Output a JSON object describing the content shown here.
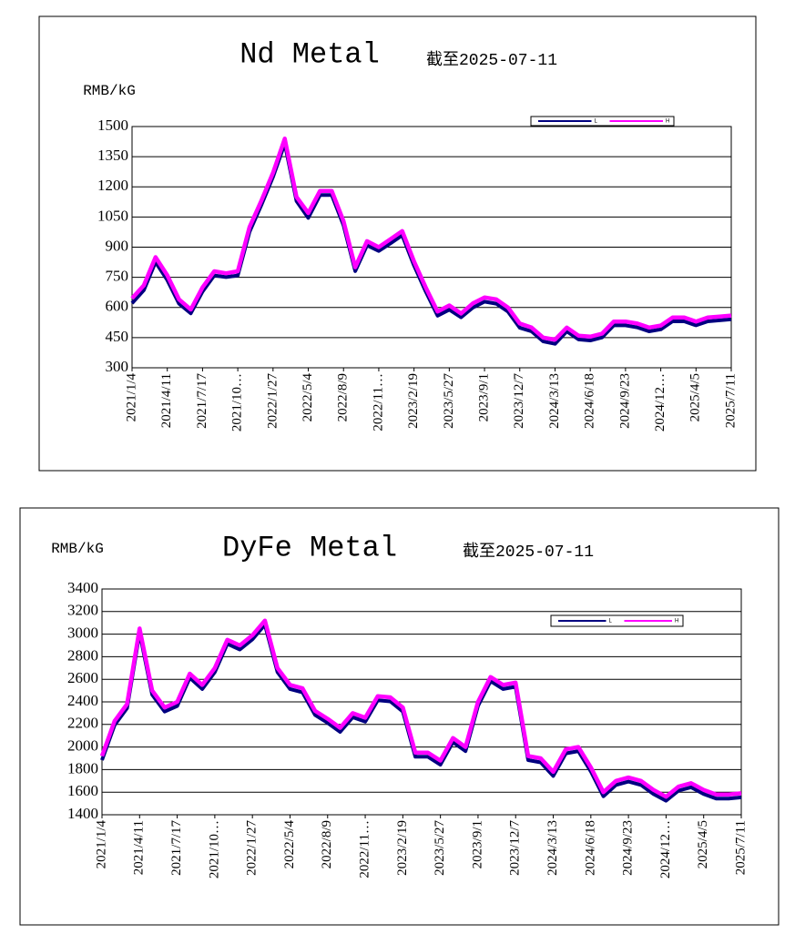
{
  "chart_data": [
    {
      "type": "line",
      "title": "Nd Metal",
      "subtitle": "截至2025-07-11",
      "y_label": "RMB/kG",
      "categories": [
        "2021/1/4",
        null,
        null,
        "2021/4/11",
        null,
        null,
        "2021/7/17",
        null,
        null,
        "2021/10…",
        null,
        null,
        "2022/1/27",
        null,
        null,
        "2022/5/4",
        null,
        null,
        "2022/8/9",
        null,
        null,
        "2022/11…",
        null,
        null,
        "2023/2/19",
        null,
        null,
        "2023/5/27",
        null,
        null,
        "2023/9/1",
        null,
        null,
        "2023/12/7",
        null,
        null,
        "2024/3/13",
        null,
        null,
        "2024/6/18",
        null,
        null,
        "2024/9/23",
        null,
        null,
        "2024/12…",
        null,
        null,
        "2025/4/5",
        null,
        null,
        "2025/7/11"
      ],
      "series": [
        {
          "name": "L",
          "color": "#000080",
          "values": [
            630,
            695,
            835,
            745,
            628,
            580,
            688,
            768,
            760,
            768,
            985,
            1118,
            1258,
            1425,
            1138,
            1055,
            1168,
            1168,
            1018,
            790,
            918,
            890,
            928,
            968,
            818,
            688,
            568,
            598,
            560,
            608,
            638,
            628,
            588,
            508,
            490,
            440,
            428,
            490,
            450,
            445,
            460,
            520,
            520,
            510,
            490,
            500,
            540,
            540,
            520,
            540,
            545,
            550
          ]
        },
        {
          "name": "H",
          "color": "#ff00ff",
          "values": [
            645,
            710,
            850,
            760,
            640,
            590,
            700,
            780,
            770,
            780,
            1000,
            1130,
            1270,
            1440,
            1150,
            1070,
            1180,
            1180,
            1030,
            800,
            930,
            900,
            940,
            980,
            830,
            700,
            580,
            610,
            570,
            620,
            650,
            640,
            600,
            520,
            500,
            450,
            440,
            500,
            460,
            455,
            470,
            530,
            530,
            520,
            500,
            510,
            550,
            550,
            530,
            550,
            555,
            560
          ]
        }
      ],
      "ylim": [
        300,
        1500
      ],
      "yticks": [
        300,
        450,
        600,
        750,
        900,
        1050,
        1200,
        1350,
        1500
      ],
      "grid": true,
      "legend": "upper right"
    },
    {
      "type": "line",
      "title": "DyFe Metal",
      "subtitle": "截至2025-07-11",
      "y_label": "RMB/kG",
      "categories": [
        "2021/1/4",
        null,
        null,
        "2021/4/11",
        null,
        null,
        "2021/7/17",
        null,
        null,
        "2021/10…",
        null,
        null,
        "2022/1/27",
        null,
        null,
        "2022/5/4",
        null,
        null,
        "2022/8/9",
        null,
        null,
        "2022/11…",
        null,
        null,
        "2023/2/19",
        null,
        null,
        "2023/5/27",
        null,
        null,
        "2023/9/1",
        null,
        null,
        "2023/12/7",
        null,
        null,
        "2024/3/13",
        null,
        null,
        "2024/6/18",
        null,
        null,
        "2024/9/23",
        null,
        null,
        "2024/12…",
        null,
        null,
        "2025/4/5",
        null,
        null,
        "2025/7/11"
      ],
      "series": [
        {
          "name": "L",
          "color": "#000080",
          "values": [
            1900,
            2210,
            2360,
            3030,
            2480,
            2330,
            2380,
            2630,
            2530,
            2680,
            2930,
            2880,
            2970,
            3100,
            2680,
            2530,
            2500,
            2300,
            2230,
            2150,
            2280,
            2240,
            2430,
            2420,
            2330,
            1930,
            1930,
            1860,
            2060,
            1980,
            2380,
            2600,
            2530,
            2550,
            1900,
            1880,
            1760,
            1960,
            1980,
            1800,
            1580,
            1680,
            1710,
            1680,
            1600,
            1540,
            1630,
            1660,
            1600,
            1560,
            1560,
            1570
          ]
        },
        {
          "name": "H",
          "color": "#ff00ff",
          "values": [
            1920,
            2230,
            2380,
            3050,
            2500,
            2350,
            2400,
            2650,
            2550,
            2700,
            2950,
            2900,
            2990,
            3120,
            2700,
            2550,
            2520,
            2320,
            2250,
            2170,
            2300,
            2260,
            2450,
            2440,
            2350,
            1950,
            1950,
            1880,
            2080,
            2000,
            2400,
            2620,
            2550,
            2570,
            1920,
            1900,
            1780,
            1980,
            2000,
            1820,
            1600,
            1700,
            1730,
            1700,
            1620,
            1560,
            1650,
            1680,
            1620,
            1580,
            1580,
            1590
          ]
        }
      ],
      "ylim": [
        1400,
        3400
      ],
      "yticks": [
        1400,
        1600,
        1800,
        2000,
        2200,
        2400,
        2600,
        2800,
        3000,
        3200,
        3400
      ],
      "grid": true,
      "legend": "upper right"
    }
  ]
}
